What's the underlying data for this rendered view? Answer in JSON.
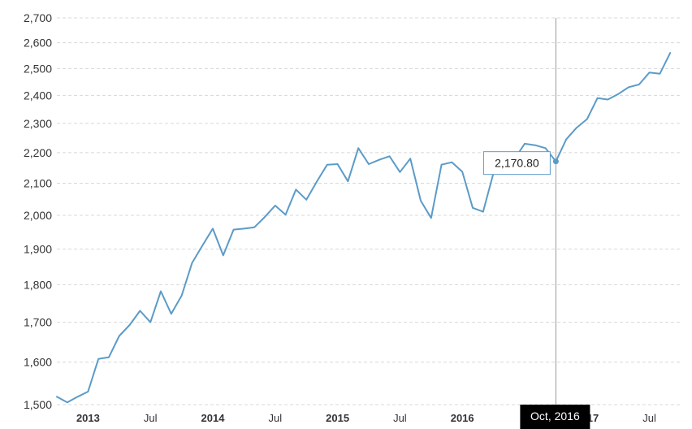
{
  "colors": {
    "line": "#5b9bc8",
    "tooltip_border": "#5b9bc8",
    "grid": "#d8d8d8",
    "crosshair": "#999999"
  },
  "tooltip": {
    "value_label": "2,170.80",
    "date_label": "Oct, 2016"
  },
  "chart_data": {
    "type": "line",
    "title": "",
    "xlabel": "",
    "ylabel": "",
    "y_scale": "log",
    "ylim": [
      1500,
      2700
    ],
    "xlim": [
      "2012-10",
      "2017-10"
    ],
    "grid": "horizontal dashed",
    "legend": "none",
    "y_ticks": [
      1500,
      1600,
      1700,
      1800,
      1900,
      2000,
      2100,
      2200,
      2300,
      2400,
      2500,
      2600,
      2700
    ],
    "y_tick_labels": [
      "1,500",
      "1,600",
      "1,700",
      "1,800",
      "1,900",
      "2,000",
      "2,100",
      "2,200",
      "2,300",
      "2,400",
      "2,500",
      "2,600",
      "2,700"
    ],
    "x_ticks": [
      {
        "label": "2013",
        "date": "2013-01",
        "bold": true
      },
      {
        "label": "Jul",
        "date": "2013-07",
        "bold": false
      },
      {
        "label": "2014",
        "date": "2014-01",
        "bold": true
      },
      {
        "label": "Jul",
        "date": "2014-07",
        "bold": false
      },
      {
        "label": "2015",
        "date": "2015-01",
        "bold": true
      },
      {
        "label": "Jul",
        "date": "2015-07",
        "bold": false
      },
      {
        "label": "2016",
        "date": "2016-01",
        "bold": true
      },
      {
        "label": "2017",
        "date": "2017-01",
        "bold": true
      },
      {
        "label": "Jul",
        "date": "2017-07",
        "bold": false
      }
    ],
    "highlight": {
      "date": "2016-10",
      "value": 2170.8
    },
    "series": [
      {
        "x": [
          "2012-10",
          "2012-11",
          "2012-12",
          "2013-01",
          "2013-02",
          "2013-03",
          "2013-04",
          "2013-05",
          "2013-06",
          "2013-07",
          "2013-08",
          "2013-09",
          "2013-10",
          "2013-11",
          "2013-12",
          "2014-01",
          "2014-02",
          "2014-03",
          "2014-04",
          "2014-05",
          "2014-06",
          "2014-07",
          "2014-08",
          "2014-09",
          "2014-10",
          "2014-11",
          "2014-12",
          "2015-01",
          "2015-02",
          "2015-03",
          "2015-04",
          "2015-05",
          "2015-06",
          "2015-07",
          "2015-08",
          "2015-09",
          "2015-10",
          "2015-11",
          "2015-12",
          "2016-01",
          "2016-02",
          "2016-03",
          "2016-04",
          "2016-05",
          "2016-06",
          "2016-07",
          "2016-08",
          "2016-09",
          "2016-10",
          "2016-11",
          "2016-12",
          "2017-01",
          "2017-02",
          "2017-03",
          "2017-04",
          "2017-05",
          "2017-06",
          "2017-07",
          "2017-08",
          "2017-09"
        ],
        "values": [
          1518,
          1505,
          1518,
          1530,
          1608,
          1612,
          1665,
          1693,
          1730,
          1700,
          1782,
          1722,
          1770,
          1860,
          1910,
          1960,
          1882,
          1957,
          1960,
          1964,
          1995,
          2030,
          2002,
          2080,
          2048,
          2105,
          2160,
          2162,
          2106,
          2215,
          2162,
          2176,
          2188,
          2136,
          2180,
          2045,
          1992,
          2160,
          2168,
          2137,
          2023,
          2011,
          2133,
          2133,
          2178,
          2230,
          2225,
          2215,
          2170.8,
          2245,
          2285,
          2315,
          2390,
          2385,
          2405,
          2430,
          2440,
          2485,
          2480,
          2560
        ]
      }
    ]
  }
}
